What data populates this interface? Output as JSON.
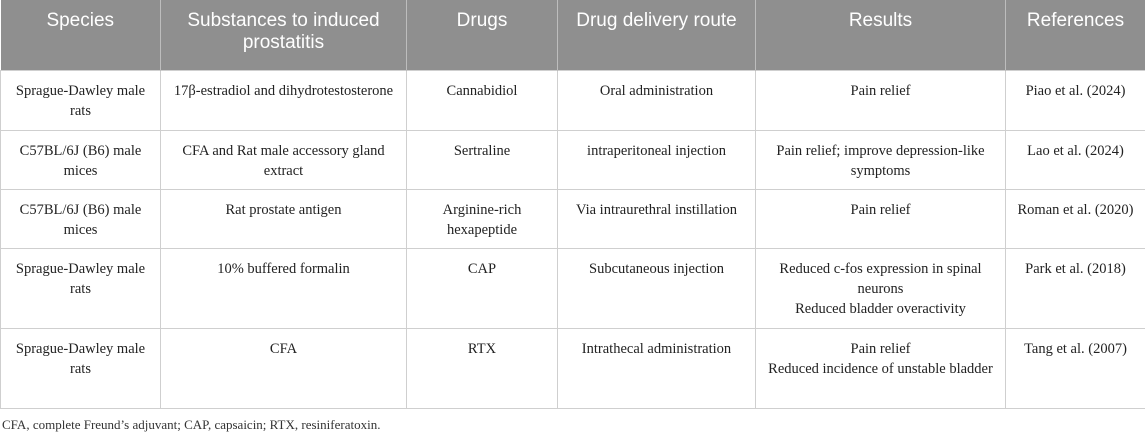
{
  "table": {
    "header": [
      "Species",
      "Substances to induced prostatitis",
      "Drugs",
      "Drug delivery route",
      "Results",
      "References"
    ],
    "rows": [
      [
        "Sprague-Dawley male rats",
        "17β-estradiol and dihydrotestosterone",
        "Cannabidiol",
        "Oral administration",
        [
          "Pain relief"
        ],
        "Piao et al. (2024)"
      ],
      [
        "C57BL/6J (B6) male mices",
        "CFA and Rat male accessory gland extract",
        "Sertraline",
        "intraperitoneal injection",
        [
          "Pain relief; improve depression-like symptoms"
        ],
        "Lao et al. (2024)"
      ],
      [
        "C57BL/6J (B6) male mices",
        "Rat prostate antigen",
        "Arginine-rich hexapeptide",
        "Via intraurethral instillation",
        [
          "Pain relief"
        ],
        "Roman et al. (2020)"
      ],
      [
        "Sprague-Dawley male rats",
        "10% buffered formalin",
        "CAP",
        "Subcutaneous injection",
        [
          "Reduced c-fos expression in spinal neurons",
          "Reduced bladder overactivity"
        ],
        "Park et al. (2018)"
      ],
      [
        "Sprague-Dawley male rats",
        "CFA",
        "RTX",
        "Intrathecal administration",
        [
          "Pain relief",
          "Reduced incidence of unstable bladder"
        ],
        "Tang et al. (2007)"
      ]
    ],
    "footnote": "CFA, complete Freund’s adjuvant; CAP, capsaicin; RTX, resiniferatoxin."
  }
}
